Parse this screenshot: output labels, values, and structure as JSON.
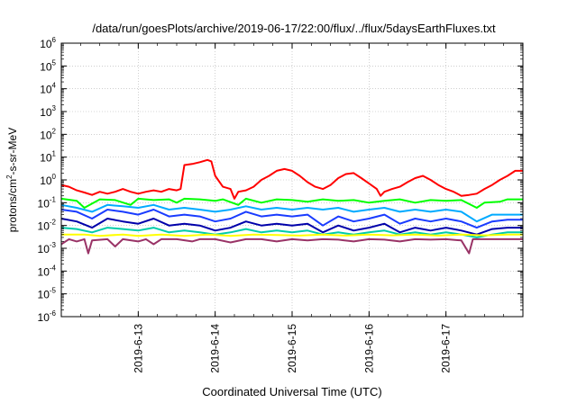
{
  "chart_data": {
    "type": "line",
    "title": "/data/run/goesPlots/archive/2019-06-17/22:00/flux/../flux/5daysEarthFluxes.txt",
    "xlabel": "Coordinated Universal Time (UTC)",
    "ylabel_parts": {
      "pre": "protons/cm",
      "sup": "2",
      "post": "-s-sr-MeV"
    },
    "y_scale": "log",
    "ylim_exponent": [
      -6,
      6
    ],
    "y_tick_base": "10",
    "y_tick_exponents": [
      "6",
      "5",
      "4",
      "3",
      "2",
      "1",
      "0",
      "-1",
      "-2",
      "-3",
      "-4",
      "-5",
      "-6"
    ],
    "xlim_days": [
      "2019-06-12T00:00",
      "2019-06-18T00:00"
    ],
    "x_tick_labels": [
      "2019-6-13",
      "2019-6-14",
      "2019-6-15",
      "2019-6-16",
      "2019-6-17"
    ],
    "grid": true,
    "series": [
      {
        "color": "#ff0000",
        "values": [
          [
            0.0,
            0.6
          ],
          [
            0.1,
            0.5
          ],
          [
            0.2,
            0.35
          ],
          [
            0.3,
            0.28
          ],
          [
            0.4,
            0.22
          ],
          [
            0.5,
            0.3
          ],
          [
            0.6,
            0.25
          ],
          [
            0.7,
            0.3
          ],
          [
            0.8,
            0.4
          ],
          [
            0.9,
            0.3
          ],
          [
            1.0,
            0.25
          ],
          [
            1.1,
            0.3
          ],
          [
            1.2,
            0.35
          ],
          [
            1.3,
            0.3
          ],
          [
            1.4,
            0.4
          ],
          [
            1.5,
            0.35
          ],
          [
            1.55,
            0.4
          ],
          [
            1.6,
            4.5
          ],
          [
            1.7,
            5.0
          ],
          [
            1.8,
            6.0
          ],
          [
            1.9,
            7.5
          ],
          [
            1.95,
            6.5
          ],
          [
            2.0,
            1.5
          ],
          [
            2.1,
            0.5
          ],
          [
            2.2,
            0.4
          ],
          [
            2.25,
            0.15
          ],
          [
            2.3,
            0.3
          ],
          [
            2.4,
            0.35
          ],
          [
            2.5,
            0.5
          ],
          [
            2.6,
            1.0
          ],
          [
            2.7,
            1.5
          ],
          [
            2.8,
            2.5
          ],
          [
            2.9,
            3.0
          ],
          [
            3.0,
            2.5
          ],
          [
            3.1,
            1.5
          ],
          [
            3.2,
            0.8
          ],
          [
            3.3,
            0.5
          ],
          [
            3.4,
            0.4
          ],
          [
            3.5,
            0.6
          ],
          [
            3.6,
            1.2
          ],
          [
            3.7,
            1.8
          ],
          [
            3.8,
            2.0
          ],
          [
            3.9,
            1.2
          ],
          [
            4.0,
            0.7
          ],
          [
            4.1,
            0.4
          ],
          [
            4.15,
            0.2
          ],
          [
            4.2,
            0.3
          ],
          [
            4.3,
            0.4
          ],
          [
            4.4,
            0.5
          ],
          [
            4.5,
            0.8
          ],
          [
            4.6,
            1.2
          ],
          [
            4.7,
            1.5
          ],
          [
            4.8,
            1.0
          ],
          [
            4.9,
            0.6
          ],
          [
            5.0,
            0.4
          ],
          [
            5.1,
            0.3
          ],
          [
            5.2,
            0.2
          ],
          [
            5.3,
            0.22
          ],
          [
            5.4,
            0.25
          ],
          [
            5.5,
            0.4
          ],
          [
            5.6,
            0.6
          ],
          [
            5.7,
            1.0
          ],
          [
            5.8,
            1.5
          ],
          [
            5.9,
            2.5
          ],
          [
            6.0,
            2.5
          ]
        ]
      },
      {
        "color": "#00ff00",
        "values": [
          [
            0.0,
            0.15
          ],
          [
            0.2,
            0.12
          ],
          [
            0.3,
            0.06
          ],
          [
            0.5,
            0.14
          ],
          [
            0.7,
            0.13
          ],
          [
            0.9,
            0.08
          ],
          [
            1.0,
            0.15
          ],
          [
            1.2,
            0.13
          ],
          [
            1.4,
            0.14
          ],
          [
            1.5,
            0.1
          ],
          [
            1.6,
            0.15
          ],
          [
            1.8,
            0.14
          ],
          [
            2.0,
            0.12
          ],
          [
            2.1,
            0.14
          ],
          [
            2.3,
            0.08
          ],
          [
            2.4,
            0.15
          ],
          [
            2.6,
            0.1
          ],
          [
            2.8,
            0.14
          ],
          [
            3.0,
            0.13
          ],
          [
            3.2,
            0.11
          ],
          [
            3.4,
            0.14
          ],
          [
            3.6,
            0.12
          ],
          [
            3.8,
            0.13
          ],
          [
            4.0,
            0.1
          ],
          [
            4.2,
            0.12
          ],
          [
            4.4,
            0.14
          ],
          [
            4.6,
            0.1
          ],
          [
            4.8,
            0.13
          ],
          [
            5.0,
            0.12
          ],
          [
            5.2,
            0.13
          ],
          [
            5.4,
            0.06
          ],
          [
            5.5,
            0.1
          ],
          [
            5.7,
            0.11
          ],
          [
            5.8,
            0.14
          ],
          [
            6.0,
            0.14
          ]
        ]
      },
      {
        "color": "#00aaff",
        "values": [
          [
            0.0,
            0.08
          ],
          [
            0.2,
            0.06
          ],
          [
            0.4,
            0.04
          ],
          [
            0.6,
            0.08
          ],
          [
            0.8,
            0.07
          ],
          [
            1.0,
            0.06
          ],
          [
            1.2,
            0.08
          ],
          [
            1.4,
            0.05
          ],
          [
            1.6,
            0.06
          ],
          [
            1.8,
            0.05
          ],
          [
            2.0,
            0.04
          ],
          [
            2.2,
            0.05
          ],
          [
            2.4,
            0.07
          ],
          [
            2.6,
            0.05
          ],
          [
            2.8,
            0.06
          ],
          [
            3.0,
            0.05
          ],
          [
            3.2,
            0.06
          ],
          [
            3.4,
            0.05
          ],
          [
            3.6,
            0.06
          ],
          [
            3.8,
            0.04
          ],
          [
            4.0,
            0.05
          ],
          [
            4.2,
            0.06
          ],
          [
            4.4,
            0.04
          ],
          [
            4.6,
            0.05
          ],
          [
            4.8,
            0.04
          ],
          [
            5.0,
            0.05
          ],
          [
            5.2,
            0.04
          ],
          [
            5.4,
            0.015
          ],
          [
            5.6,
            0.03
          ],
          [
            5.8,
            0.03
          ],
          [
            6.0,
            0.03
          ]
        ]
      },
      {
        "color": "#1a3cff",
        "values": [
          [
            0.0,
            0.05
          ],
          [
            0.2,
            0.04
          ],
          [
            0.4,
            0.02
          ],
          [
            0.6,
            0.05
          ],
          [
            0.8,
            0.04
          ],
          [
            1.0,
            0.03
          ],
          [
            1.2,
            0.05
          ],
          [
            1.4,
            0.025
          ],
          [
            1.6,
            0.03
          ],
          [
            1.8,
            0.025
          ],
          [
            2.0,
            0.015
          ],
          [
            2.2,
            0.02
          ],
          [
            2.4,
            0.04
          ],
          [
            2.6,
            0.025
          ],
          [
            2.8,
            0.03
          ],
          [
            3.0,
            0.025
          ],
          [
            3.2,
            0.03
          ],
          [
            3.4,
            0.01
          ],
          [
            3.6,
            0.025
          ],
          [
            3.8,
            0.015
          ],
          [
            4.0,
            0.02
          ],
          [
            4.2,
            0.03
          ],
          [
            4.4,
            0.012
          ],
          [
            4.6,
            0.02
          ],
          [
            4.8,
            0.015
          ],
          [
            5.0,
            0.02
          ],
          [
            5.2,
            0.015
          ],
          [
            5.4,
            0.008
          ],
          [
            5.6,
            0.015
          ],
          [
            5.8,
            0.018
          ],
          [
            6.0,
            0.018
          ]
        ]
      },
      {
        "color": "#0000aa",
        "values": [
          [
            0.0,
            0.02
          ],
          [
            0.2,
            0.015
          ],
          [
            0.4,
            0.008
          ],
          [
            0.6,
            0.02
          ],
          [
            0.8,
            0.015
          ],
          [
            1.0,
            0.012
          ],
          [
            1.2,
            0.02
          ],
          [
            1.4,
            0.01
          ],
          [
            1.6,
            0.012
          ],
          [
            1.8,
            0.01
          ],
          [
            2.0,
            0.006
          ],
          [
            2.2,
            0.008
          ],
          [
            2.4,
            0.015
          ],
          [
            2.6,
            0.01
          ],
          [
            2.8,
            0.012
          ],
          [
            3.0,
            0.01
          ],
          [
            3.2,
            0.012
          ],
          [
            3.4,
            0.005
          ],
          [
            3.6,
            0.01
          ],
          [
            3.8,
            0.006
          ],
          [
            4.0,
            0.008
          ],
          [
            4.2,
            0.012
          ],
          [
            4.4,
            0.005
          ],
          [
            4.6,
            0.008
          ],
          [
            4.8,
            0.006
          ],
          [
            5.0,
            0.008
          ],
          [
            5.2,
            0.006
          ],
          [
            5.4,
            0.004
          ],
          [
            5.6,
            0.007
          ],
          [
            5.8,
            0.008
          ],
          [
            6.0,
            0.008
          ]
        ]
      },
      {
        "color": "#00ccaa",
        "values": [
          [
            0.0,
            0.008
          ],
          [
            0.2,
            0.007
          ],
          [
            0.4,
            0.005
          ],
          [
            0.6,
            0.008
          ],
          [
            0.8,
            0.007
          ],
          [
            1.0,
            0.006
          ],
          [
            1.2,
            0.008
          ],
          [
            1.4,
            0.005
          ],
          [
            1.6,
            0.006
          ],
          [
            1.8,
            0.005
          ],
          [
            2.0,
            0.004
          ],
          [
            2.2,
            0.005
          ],
          [
            2.4,
            0.007
          ],
          [
            2.6,
            0.005
          ],
          [
            2.8,
            0.006
          ],
          [
            3.0,
            0.005
          ],
          [
            3.2,
            0.006
          ],
          [
            3.4,
            0.004
          ],
          [
            3.6,
            0.005
          ],
          [
            3.8,
            0.004
          ],
          [
            4.0,
            0.005
          ],
          [
            4.2,
            0.006
          ],
          [
            4.4,
            0.004
          ],
          [
            4.6,
            0.005
          ],
          [
            4.8,
            0.004
          ],
          [
            5.0,
            0.005
          ],
          [
            5.2,
            0.004
          ],
          [
            5.4,
            0.003
          ],
          [
            5.6,
            0.004
          ],
          [
            5.8,
            0.005
          ],
          [
            6.0,
            0.005
          ]
        ]
      },
      {
        "color": "#ffff00",
        "values": [
          [
            0.0,
            0.004
          ],
          [
            0.3,
            0.004
          ],
          [
            0.5,
            0.0035
          ],
          [
            0.8,
            0.004
          ],
          [
            1.0,
            0.0035
          ],
          [
            1.3,
            0.004
          ],
          [
            1.6,
            0.0035
          ],
          [
            1.9,
            0.004
          ],
          [
            2.2,
            0.0035
          ],
          [
            2.5,
            0.004
          ],
          [
            2.8,
            0.0038
          ],
          [
            3.1,
            0.0036
          ],
          [
            3.4,
            0.004
          ],
          [
            3.7,
            0.0036
          ],
          [
            4.0,
            0.004
          ],
          [
            4.3,
            0.0037
          ],
          [
            4.6,
            0.004
          ],
          [
            4.9,
            0.0036
          ],
          [
            5.2,
            0.004
          ],
          [
            5.5,
            0.0037
          ],
          [
            5.8,
            0.004
          ],
          [
            6.0,
            0.004
          ]
        ]
      },
      {
        "color": "#993366",
        "values": [
          [
            0.0,
            0.0015
          ],
          [
            0.1,
            0.0025
          ],
          [
            0.2,
            0.002
          ],
          [
            0.3,
            0.0025
          ],
          [
            0.35,
            0.0006
          ],
          [
            0.4,
            0.0022
          ],
          [
            0.6,
            0.0025
          ],
          [
            0.7,
            0.0012
          ],
          [
            0.8,
            0.0025
          ],
          [
            1.0,
            0.002
          ],
          [
            1.1,
            0.0025
          ],
          [
            1.2,
            0.0015
          ],
          [
            1.3,
            0.0025
          ],
          [
            1.5,
            0.0025
          ],
          [
            1.7,
            0.002
          ],
          [
            1.8,
            0.0025
          ],
          [
            2.0,
            0.0025
          ],
          [
            2.2,
            0.0018
          ],
          [
            2.4,
            0.0025
          ],
          [
            2.6,
            0.0025
          ],
          [
            2.8,
            0.002
          ],
          [
            3.0,
            0.0025
          ],
          [
            3.2,
            0.0022
          ],
          [
            3.4,
            0.0025
          ],
          [
            3.6,
            0.0024
          ],
          [
            3.8,
            0.002
          ],
          [
            4.0,
            0.0025
          ],
          [
            4.2,
            0.0024
          ],
          [
            4.4,
            0.002
          ],
          [
            4.6,
            0.0025
          ],
          [
            4.8,
            0.0024
          ],
          [
            5.0,
            0.0025
          ],
          [
            5.2,
            0.0022
          ],
          [
            5.3,
            0.0006
          ],
          [
            5.35,
            0.0025
          ],
          [
            5.6,
            0.0025
          ],
          [
            5.8,
            0.0025
          ],
          [
            6.0,
            0.0025
          ]
        ]
      }
    ]
  }
}
